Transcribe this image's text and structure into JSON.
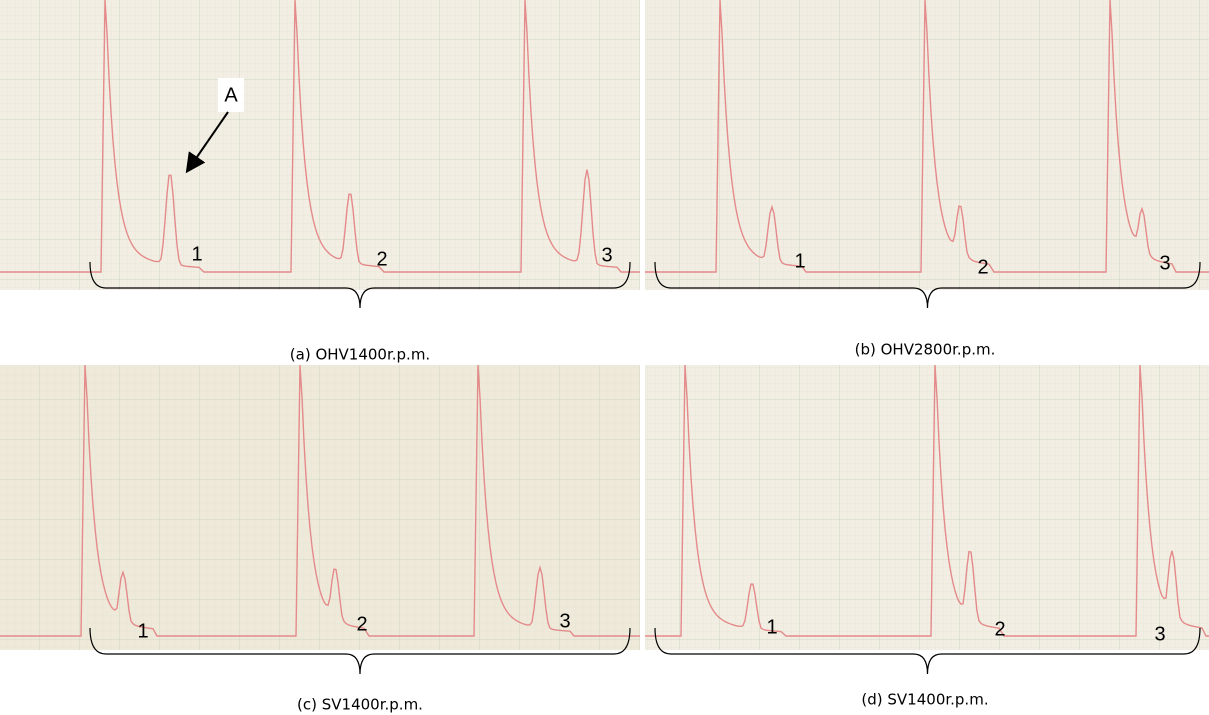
{
  "annotation": "A",
  "panels": [
    {
      "caption": "(a) OHV1400r.p.m.",
      "labels": [
        "1",
        "2",
        "3"
      ]
    },
    {
      "caption": "(b) OHV2800r.p.m.",
      "labels": [
        "1",
        "2",
        "3"
      ]
    },
    {
      "caption": "(c) SV1400r.p.m.",
      "labels": [
        "1",
        "2",
        "3"
      ]
    },
    {
      "caption": "(d) SV1400r.p.m.",
      "labels": [
        "1",
        "2",
        "3"
      ]
    }
  ]
}
